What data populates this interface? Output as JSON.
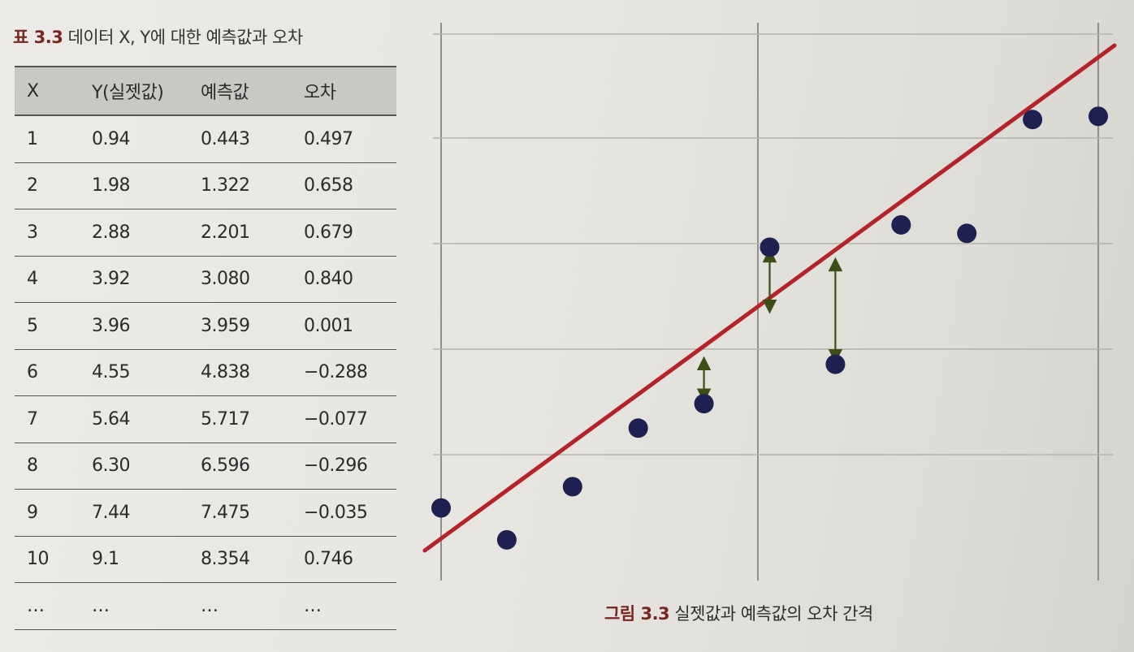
{
  "table_caption": {
    "number": "표 3.3",
    "text": "데이터 X, Y에 대한 예측값과 오차"
  },
  "table": {
    "headers": [
      "X",
      "Y(실젯값)",
      "예측값",
      "오차"
    ],
    "rows": [
      [
        "1",
        "0.94",
        "0.443",
        "0.497"
      ],
      [
        "2",
        "1.98",
        "1.322",
        "0.658"
      ],
      [
        "3",
        "2.88",
        "2.201",
        "0.679"
      ],
      [
        "4",
        "3.92",
        "3.080",
        "0.840"
      ],
      [
        "5",
        "3.96",
        "3.959",
        "0.001"
      ],
      [
        "6",
        "4.55",
        "4.838",
        "−0.288"
      ],
      [
        "7",
        "5.64",
        "5.717",
        "−0.077"
      ],
      [
        "8",
        "6.30",
        "6.596",
        "−0.296"
      ],
      [
        "9",
        "7.44",
        "7.475",
        "−0.035"
      ],
      [
        "10",
        "9.1",
        "8.354",
        "0.746"
      ],
      [
        "…",
        "…",
        "…",
        "…"
      ]
    ]
  },
  "figure_caption": {
    "number": "그림 3.3",
    "text": "실젯값과 예측값의 오차 간격"
  },
  "colors": {
    "line": "#b5232a",
    "points": "#1e2150",
    "arrows": "#3d4f16",
    "caption_number": "#7a2520"
  },
  "chart_data": {
    "type": "scatter",
    "title": "",
    "xlabel": "",
    "ylabel": "",
    "grid": true,
    "legend": "none",
    "points": [
      {
        "x": 0.0,
        "y": 0.1
      },
      {
        "x": 1.0,
        "y": -0.2
      },
      {
        "x": 2.0,
        "y": 0.3
      },
      {
        "x": 3.0,
        "y": 0.85
      },
      {
        "x": 4.0,
        "y": 1.08
      },
      {
        "x": 5.0,
        "y": 2.55
      },
      {
        "x": 6.0,
        "y": 1.45
      },
      {
        "x": 7.0,
        "y": 2.76
      },
      {
        "x": 8.0,
        "y": 2.68
      },
      {
        "x": 9.0,
        "y": 3.75
      },
      {
        "x": 10.0,
        "y": 3.78
      }
    ],
    "regression_line": {
      "x1": -0.1,
      "y1": -0.3,
      "x2": 10.0,
      "y2": 4.4
    },
    "error_arrows": [
      {
        "x": 4.0,
        "y_from": 1.08,
        "y_to": 1.49
      },
      {
        "x": 5.0,
        "y_from": 2.55,
        "y_to": 1.96
      },
      {
        "x": 6.0,
        "y_from": 1.45,
        "y_to": 2.42
      }
    ],
    "xlim": [
      0,
      10
    ],
    "ylim": [
      -0.3,
      4.4
    ]
  }
}
